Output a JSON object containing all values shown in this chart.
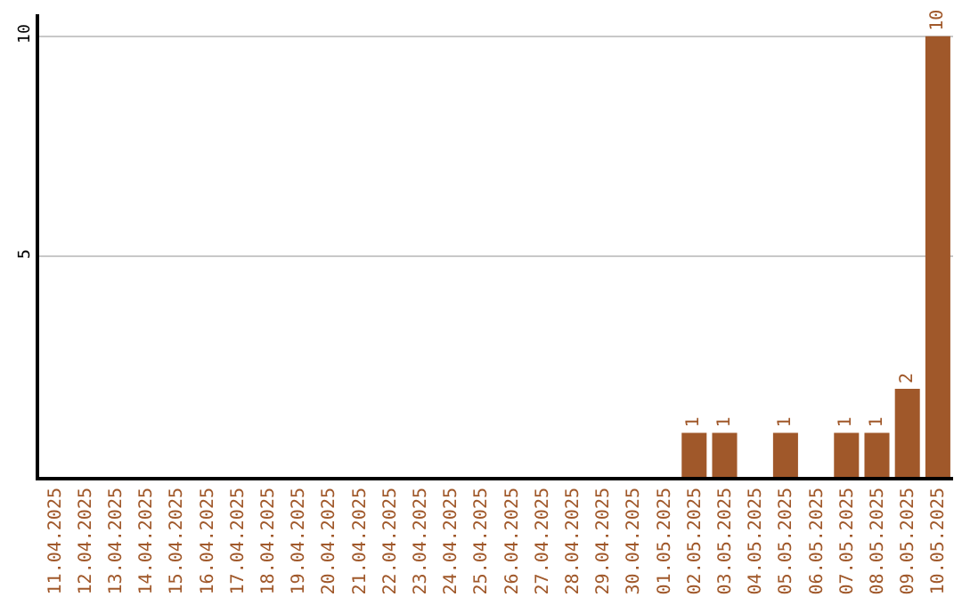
{
  "chart_data": {
    "type": "bar",
    "categories": [
      "11.04.2025",
      "12.04.2025",
      "13.04.2025",
      "14.04.2025",
      "15.04.2025",
      "16.04.2025",
      "17.04.2025",
      "18.04.2025",
      "19.04.2025",
      "20.04.2025",
      "21.04.2025",
      "22.04.2025",
      "23.04.2025",
      "24.04.2025",
      "25.04.2025",
      "26.04.2025",
      "27.04.2025",
      "28.04.2025",
      "29.04.2025",
      "30.04.2025",
      "01.05.2025",
      "02.05.2025",
      "03.05.2025",
      "04.05.2025",
      "05.05.2025",
      "06.05.2025",
      "07.05.2025",
      "08.05.2025",
      "09.05.2025",
      "10.05.2025"
    ],
    "values": [
      0,
      0,
      0,
      0,
      0,
      0,
      0,
      0,
      0,
      0,
      0,
      0,
      0,
      0,
      0,
      0,
      0,
      0,
      0,
      0,
      0,
      1,
      1,
      0,
      1,
      0,
      1,
      1,
      2,
      10
    ],
    "value_labels": [
      null,
      null,
      null,
      null,
      null,
      null,
      null,
      null,
      null,
      null,
      null,
      null,
      null,
      null,
      null,
      null,
      null,
      null,
      null,
      null,
      null,
      "1",
      "1",
      null,
      "1",
      null,
      "1",
      "1",
      "2",
      "10"
    ],
    "color": "#a0582a",
    "ylim": [
      0,
      10.5
    ],
    "yticks": [
      5,
      10
    ],
    "grid": "y"
  }
}
